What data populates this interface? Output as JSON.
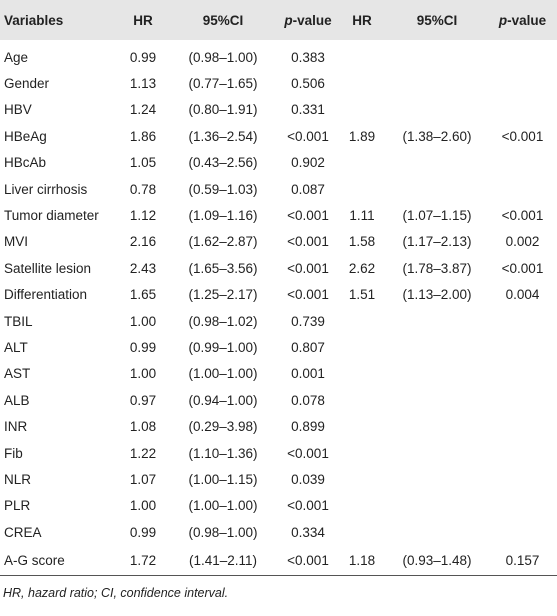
{
  "table": {
    "header": [
      "Variables",
      "HR",
      "95%CI",
      "p-value",
      "HR",
      "95%CI",
      "p-value"
    ],
    "rows": [
      [
        "Age",
        "0.99",
        "(0.98–1.00)",
        "0.383",
        null,
        null,
        null
      ],
      [
        "Gender",
        "1.13",
        "(0.77–1.65)",
        "0.506",
        null,
        null,
        null
      ],
      [
        "HBV",
        "1.24",
        "(0.80–1.91)",
        "0.331",
        null,
        null,
        null
      ],
      [
        "HBeAg",
        "1.86",
        "(1.36–2.54)",
        "<0.001",
        "1.89",
        "(1.38–2.60)",
        "<0.001"
      ],
      [
        "HBcAb",
        "1.05",
        "(0.43–2.56)",
        "0.902",
        null,
        null,
        null
      ],
      [
        "Liver cirrhosis",
        "0.78",
        "(0.59–1.03)",
        "0.087",
        null,
        null,
        null
      ],
      [
        "Tumor diameter",
        "1.12",
        "(1.09–1.16)",
        "<0.001",
        "1.11",
        "(1.07–1.15)",
        "<0.001"
      ],
      [
        "MVI",
        "2.16",
        "(1.62–2.87)",
        "<0.001",
        "1.58",
        "(1.17–2.13)",
        "0.002"
      ],
      [
        "Satellite lesion",
        "2.43",
        "(1.65–3.56)",
        "<0.001",
        "2.62",
        "(1.78–3.87)",
        "<0.001"
      ],
      [
        "Differentiation",
        "1.65",
        "(1.25–2.17)",
        "<0.001",
        "1.51",
        "(1.13–2.00)",
        "0.004"
      ],
      [
        "TBIL",
        "1.00",
        "(0.98–1.02)",
        "0.739",
        null,
        null,
        null
      ],
      [
        "ALT",
        "0.99",
        "(0.99–1.00)",
        "0.807",
        null,
        null,
        null
      ],
      [
        "AST",
        "1.00",
        "(1.00–1.00)",
        "0.001",
        null,
        null,
        null
      ],
      [
        "ALB",
        "0.97",
        "(0.94–1.00)",
        "0.078",
        null,
        null,
        null
      ],
      [
        "INR",
        "1.08",
        "(0.29–3.98)",
        "0.899",
        null,
        null,
        null
      ],
      [
        "Fib",
        "1.22",
        "(1.10–1.36)",
        "<0.001",
        null,
        null,
        null
      ],
      [
        "NLR",
        "1.07",
        "(1.00–1.15)",
        "0.039",
        null,
        null,
        null
      ],
      [
        "PLR",
        "1.00",
        "(1.00–1.00)",
        "<0.001",
        null,
        null,
        null
      ],
      [
        "CREA",
        "0.99",
        "(0.98–1.00)",
        "0.334",
        null,
        null,
        null
      ],
      [
        "A-G score",
        "1.72",
        "(1.41–2.11)",
        "<0.001",
        "1.18",
        "(0.93–1.48)",
        "0.157"
      ]
    ],
    "footnote": "HR, hazard ratio; CI, confidence interval."
  }
}
